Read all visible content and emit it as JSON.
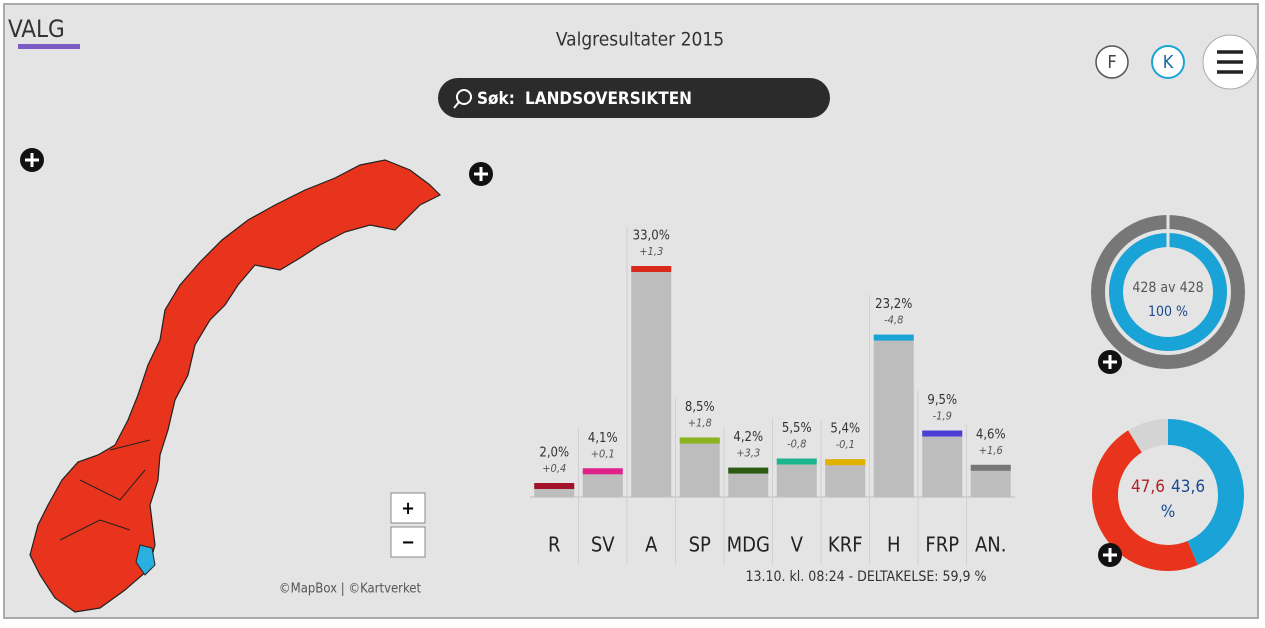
{
  "header": {
    "logo": "VALG",
    "title": "Valgresultater 2015",
    "buttons": [
      "F",
      "K"
    ]
  },
  "search": {
    "label": "Søk:",
    "query": "LANDSOVERSIKTEN"
  },
  "map": {
    "attribution": "©MapBox | ©Kartverket",
    "zoom_in": "+",
    "zoom_out": "−"
  },
  "results": {
    "parties": [
      "R",
      "SV",
      "A",
      "SP",
      "MDG",
      "V",
      "KRF",
      "H",
      "FRP",
      "AN."
    ],
    "values": [
      2.0,
      4.1,
      33.0,
      8.5,
      4.2,
      5.5,
      5.4,
      23.2,
      9.5,
      4.6
    ],
    "value_labels": [
      "2,0%",
      "4,1%",
      "33,0%",
      "8,5%",
      "4,2%",
      "5,5%",
      "5,4%",
      "23,2%",
      "9,5%",
      "4,6%"
    ],
    "changes": [
      "+0,4",
      "+0,1",
      "+1,3",
      "+1,8",
      "+3,3",
      "-0,8",
      "-0,1",
      "-4,8",
      "-1,9",
      "+1,6"
    ],
    "colors": [
      "#a3122a",
      "#e0218a",
      "#d9291c",
      "#8cb31e",
      "#2d5a12",
      "#1ab58c",
      "#e2b100",
      "#1aa3d6",
      "#4b3fd8",
      "#777777"
    ],
    "footer": "13.10. kl. 08:24 - DELTAKELSE: 59,9 %"
  },
  "counted": {
    "label": "428 av 428",
    "percent": 100,
    "percent_label": "100 %"
  },
  "blocks": {
    "left": 47.6,
    "left_label": "47,6",
    "right": 43.6,
    "right_label": "43,6",
    "unit": "%"
  }
}
